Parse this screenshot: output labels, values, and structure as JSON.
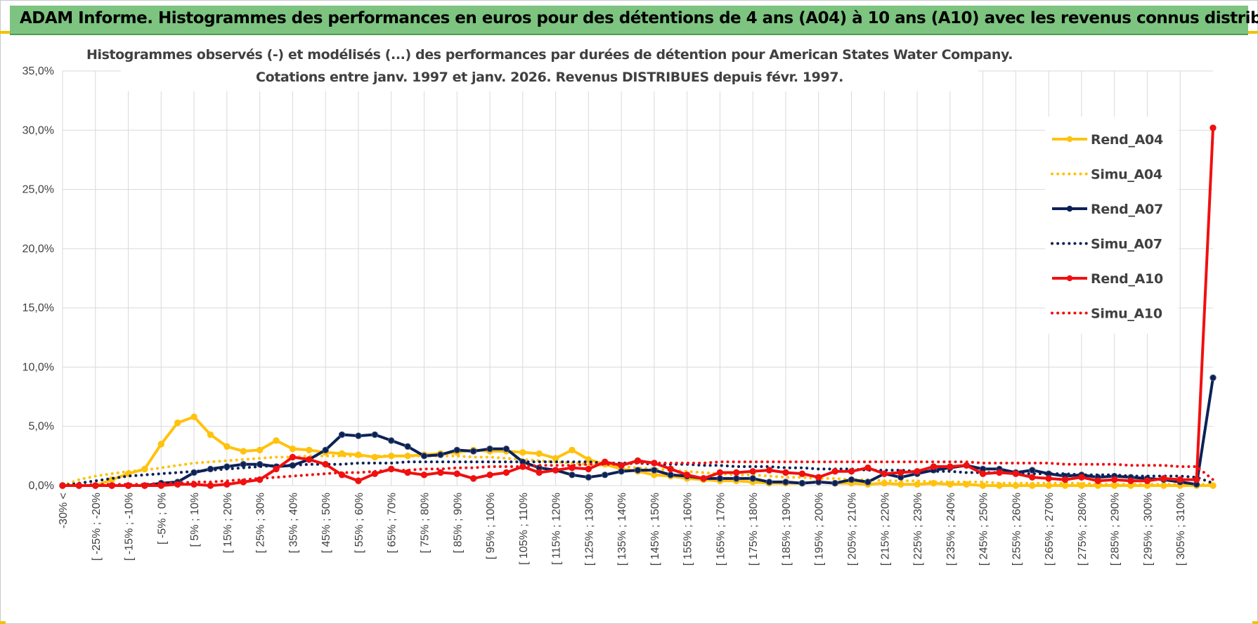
{
  "banner": {
    "title": "ADAM Informe. Histogrammes des performances en euros pour des détentions de 4 ans (A04) à 10 ans (A10) avec les revenus connus distribués"
  },
  "colors": {
    "banner_bg": "#7cc47f",
    "A04": "#ffc20e",
    "A07": "#0c2157",
    "A10": "#f01010",
    "grid": "#d9d9d9"
  },
  "chart_data": {
    "type": "line",
    "title": "Histogrammes observés (-) et modélisés (...) des performances par durées de détention pour American States Water Company.",
    "subtitle": "Cotations entre janv. 1997 et janv. 2026. Revenus DISTRIBUES depuis févr. 1997.",
    "ylim": [
      0,
      35
    ],
    "yticks": [
      "0,0%",
      "5,0%",
      "10,0%",
      "15,0%",
      "20,0%",
      "25,0%",
      "30,0%",
      "35,0%"
    ],
    "grid": true,
    "legend_position": "right",
    "categories": [
      "-30% <",
      "[ -30% ; -25%",
      "[ -25% ; -20%",
      "[ -20% ; -15%",
      "[ -15% ; -10%",
      "[ -10% ; -5%",
      "[ -5% ; 0%",
      "[ 0% ; 5%",
      "[ 5% ; 10%",
      "[ 10% ; 15%",
      "[ 15% ; 20%",
      "[ 20% ; 25%",
      "[ 25% ; 30%",
      "[ 30% ; 35%",
      "[ 35% ; 40%",
      "[ 40% ; 45%",
      "[ 45% ; 50%",
      "[ 50% ; 55%",
      "[ 55% ; 60%",
      "[ 60% ; 65%",
      "[ 65% ; 70%",
      "[ 70% ; 75%",
      "[ 75% ; 80%",
      "[ 80% ; 85%",
      "[ 85% ; 90%",
      "[ 90% ; 95%",
      "[ 95% ; 100%",
      "[ 100% ; 105%",
      "[ 105% ; 110%",
      "[ 110% ; 115%",
      "[ 115% ; 120%",
      "[ 120% ; 125%",
      "[ 125% ; 130%",
      "[ 130% ; 135%",
      "[ 135% ; 140%",
      "[ 140% ; 145%",
      "[ 145% ; 150%",
      "[ 150% ; 155%",
      "[ 155% ; 160%",
      "[ 160% ; 165%",
      "[ 165% ; 170%",
      "[ 170% ; 175%",
      "[ 175% ; 180%",
      "[ 180% ; 185%",
      "[ 185% ; 190%",
      "[ 190% ; 195%",
      "[ 195% ; 200%",
      "[ 200% ; 205%",
      "[ 205% ; 210%",
      "[ 210% ; 215%",
      "[ 215% ; 220%",
      "[ 220% ; 225%",
      "[ 225% ; 230%",
      "[ 230% ; 235%",
      "[ 235% ; 240%",
      "[ 240% ; 245%",
      "[ 245% ; 250%",
      "[ 250% ; 255%",
      "[ 255% ; 260%",
      "[ 260% ; 265%",
      "[ 265% ; 270%",
      "[ 270% ; 275%",
      "[ 275% ; 280%",
      "[ 280% ; 285%",
      "[ 285% ; 290%",
      "[ 290% ; 295%",
      "[ 295% ; 300%",
      "[ 300% ; 305%",
      "[ 305% ; 310%",
      "[ 310% ; 315%",
      "> 315%"
    ],
    "tick_labels": [
      "-30% <",
      "[ -25% ; -20%",
      "[ -15% ; -10%",
      "[ -5% ; 0%",
      "[ 5% ; 10%",
      "[ 15% ; 20%",
      "[ 25% ; 30%",
      "[ 35% ; 40%",
      "[ 45% ; 50%",
      "[ 55% ; 60%",
      "[ 65% ; 70%",
      "[ 75% ; 80%",
      "[ 85% ; 90%",
      "[ 95% ; 100%",
      "[ 105% ; 110%",
      "[ 115% ; 120%",
      "[ 125% ; 130%",
      "[ 135% ; 140%",
      "[ 145% ; 150%",
      "[ 155% ; 160%",
      "[ 165% ; 170%",
      "[ 175% ; 180%",
      "[ 185% ; 190%",
      "[ 195% ; 200%",
      "[ 205% ; 210%",
      "[ 215% ; 220%",
      "[ 225% ; 230%",
      "[ 235% ; 240%",
      "[ 245% ; 250%",
      "[ 255% ; 260%",
      "[ 265% ; 270%",
      "[ 275% ; 280%",
      "[ 285% ; 290%",
      "[ 295% ; 300%",
      "[ 305% ; 310%"
    ],
    "series": [
      {
        "name": "Rend_A04",
        "style": "solid",
        "marker": true,
        "color": "#ffc20e",
        "values": [
          0,
          0,
          0,
          0.5,
          1,
          1.4,
          3.5,
          5.3,
          5.8,
          4.3,
          3.3,
          2.9,
          3,
          3.8,
          3.1,
          3,
          2.8,
          2.7,
          2.6,
          2.4,
          2.5,
          2.5,
          2.6,
          2.7,
          2.8,
          3,
          2.9,
          2.9,
          2.8,
          2.7,
          2.3,
          3,
          2.2,
          1.8,
          1.4,
          1.2,
          0.9,
          0.8,
          0.6,
          0.5,
          0.4,
          0.4,
          0.3,
          0.2,
          0.2,
          0.2,
          0.3,
          0.2,
          0.2,
          0.1,
          0.2,
          0.1,
          0.1,
          0.2,
          0.1,
          0.1,
          0,
          0,
          0,
          0,
          0,
          0,
          0,
          0,
          0,
          0,
          0,
          0,
          0,
          0,
          0
        ]
      },
      {
        "name": "Simu_A04",
        "style": "dotted",
        "marker": false,
        "color": "#ffc20e",
        "values": [
          0,
          0.5,
          0.8,
          1,
          1.2,
          1.3,
          1.5,
          1.7,
          1.9,
          2,
          2.1,
          2.2,
          2.3,
          2.4,
          2.4,
          2.5,
          2.5,
          2.5,
          2.5,
          2.5,
          2.5,
          2.5,
          2.5,
          2.5,
          2.5,
          2.4,
          2.4,
          2.3,
          2.2,
          2.1,
          2,
          1.9,
          1.8,
          1.7,
          1.6,
          1.5,
          1.4,
          1.3,
          1.2,
          1.1,
          1,
          0.9,
          0.9,
          0.8,
          0.7,
          0.7,
          0.6,
          0.6,
          0.5,
          0.5,
          0.4,
          0.4,
          0.4,
          0.3,
          0.3,
          0.3,
          0.3,
          0.2,
          0.2,
          0.2,
          0.2,
          0.2,
          0.2,
          0.1,
          0.1,
          0.1,
          0.1,
          0.1,
          0.1,
          0.1,
          0.1
        ]
      },
      {
        "name": "Rend_A07",
        "style": "solid",
        "marker": true,
        "color": "#0c2157",
        "values": [
          0,
          0,
          0,
          0,
          0,
          0,
          0.2,
          0.3,
          1.1,
          1.4,
          1.6,
          1.8,
          1.8,
          1.6,
          1.7,
          2.2,
          3,
          4.3,
          4.2,
          4.3,
          3.8,
          3.3,
          2.5,
          2.6,
          3,
          2.9,
          3.1,
          3.1,
          2,
          1.5,
          1.3,
          0.9,
          0.7,
          0.9,
          1.2,
          1.3,
          1.3,
          0.9,
          0.8,
          0.6,
          0.6,
          0.6,
          0.6,
          0.3,
          0.3,
          0.2,
          0.3,
          0.2,
          0.5,
          0.3,
          1,
          0.7,
          1,
          1.3,
          1.5,
          1.7,
          1.4,
          1.4,
          1.1,
          1.3,
          1,
          0.8,
          0.9,
          0.7,
          0.8,
          0.7,
          0.6,
          0.5,
          0.3,
          0.1,
          9.1
        ]
      },
      {
        "name": "Simu_A07",
        "style": "dotted",
        "marker": false,
        "color": "#0c2157",
        "values": [
          0,
          0.2,
          0.4,
          0.6,
          0.8,
          0.9,
          1,
          1.1,
          1.2,
          1.3,
          1.4,
          1.5,
          1.6,
          1.7,
          1.7,
          1.8,
          1.8,
          1.8,
          1.9,
          1.9,
          1.9,
          2,
          2,
          2,
          2,
          2,
          2,
          2,
          2,
          2,
          2,
          2,
          2,
          1.9,
          1.9,
          1.9,
          1.8,
          1.8,
          1.8,
          1.7,
          1.7,
          1.6,
          1.6,
          1.6,
          1.5,
          1.5,
          1.4,
          1.4,
          1.4,
          1.3,
          1.3,
          1.3,
          1.2,
          1.2,
          1.2,
          1.1,
          1.1,
          1.1,
          1,
          1,
          1,
          1,
          0.9,
          0.9,
          0.9,
          0.8,
          0.8,
          0.8,
          0.8,
          0.7,
          0.2
        ]
      },
      {
        "name": "Rend_A10",
        "style": "solid",
        "marker": true,
        "color": "#f01010",
        "values": [
          0,
          0,
          0,
          0,
          0,
          0,
          0,
          0.1,
          0.1,
          0,
          0.1,
          0.3,
          0.5,
          1.4,
          2.4,
          2.2,
          1.8,
          0.9,
          0.4,
          1,
          1.4,
          1.1,
          0.9,
          1.1,
          1,
          0.6,
          0.9,
          1.1,
          1.6,
          1.1,
          1.3,
          1.5,
          1.4,
          2,
          1.7,
          2.1,
          1.9,
          1.4,
          0.9,
          0.6,
          1.1,
          1.1,
          1.2,
          1.3,
          1.1,
          1,
          0.7,
          1.2,
          1.2,
          1.5,
          1,
          1.1,
          1.2,
          1.6,
          1.6,
          1.7,
          1,
          1.1,
          1,
          0.7,
          0.6,
          0.5,
          0.7,
          0.4,
          0.5,
          0.4,
          0.4,
          0.6,
          0.5,
          0.5,
          30.2
        ]
      },
      {
        "name": "Simu_A10",
        "style": "dotted",
        "marker": false,
        "color": "#f01010",
        "values": [
          0,
          0,
          0.1,
          0.1,
          0.1,
          0.1,
          0.2,
          0.2,
          0.3,
          0.3,
          0.4,
          0.5,
          0.6,
          0.7,
          0.8,
          0.9,
          1,
          1.1,
          1.1,
          1.2,
          1.3,
          1.3,
          1.4,
          1.4,
          1.5,
          1.5,
          1.6,
          1.6,
          1.6,
          1.7,
          1.7,
          1.7,
          1.8,
          1.8,
          1.8,
          1.9,
          1.9,
          1.9,
          1.9,
          1.9,
          2,
          2,
          2,
          2,
          2,
          2,
          2,
          2,
          2,
          2,
          2,
          2,
          2,
          2,
          2,
          2,
          1.9,
          1.9,
          1.9,
          1.9,
          1.9,
          1.8,
          1.8,
          1.8,
          1.8,
          1.7,
          1.7,
          1.7,
          1.6,
          1.6,
          0.5
        ]
      }
    ]
  }
}
